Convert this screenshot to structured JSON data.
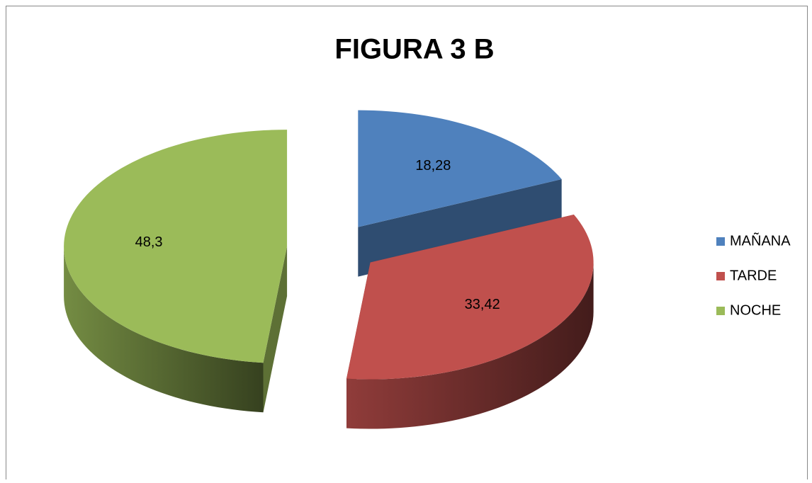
{
  "chart_data": {
    "type": "pie",
    "title": "FIGURA  3 B",
    "categories": [
      "MAÑANA",
      "TARDE",
      "NOCHE"
    ],
    "values": [
      18.28,
      33.42,
      48.3
    ],
    "value_labels": [
      "18,28",
      "33,42",
      "48,3"
    ],
    "colors": [
      "#4f81bd",
      "#c0504d",
      "#9bbb59"
    ],
    "legend": "right"
  }
}
